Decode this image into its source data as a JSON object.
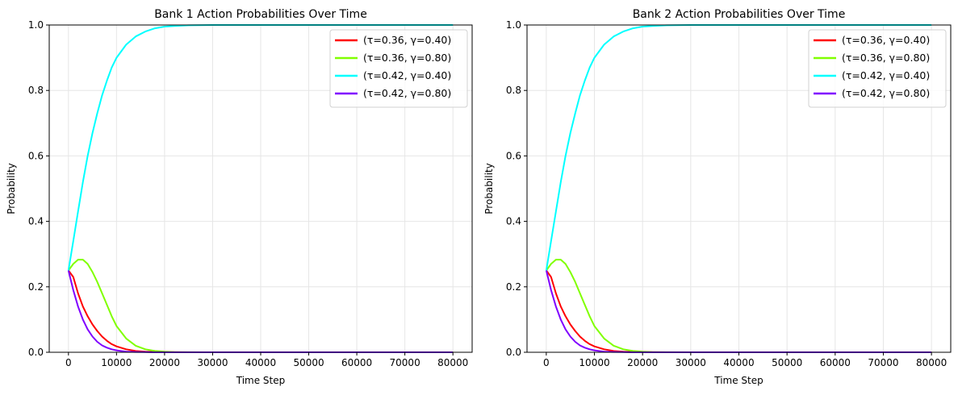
{
  "charts": [
    {
      "title": "Bank 1 Action Probabilities Over Time",
      "xlabel": "Time Step",
      "ylabel": "Probability"
    },
    {
      "title": "Bank 2 Action Probabilities Over Time",
      "xlabel": "Time Step",
      "ylabel": "Probability"
    }
  ],
  "chart_data": [
    {
      "type": "line",
      "title": "Bank 1 Action Probabilities Over Time",
      "xlabel": "Time Step",
      "ylabel": "Probability",
      "xlim": [
        -4000,
        84000
      ],
      "ylim": [
        0,
        1
      ],
      "xticks": [
        0,
        10000,
        20000,
        30000,
        40000,
        50000,
        60000,
        70000,
        80000
      ],
      "yticks": [
        0.0,
        0.2,
        0.4,
        0.6,
        0.8,
        1.0
      ],
      "grid": true,
      "legend_position": "top-right",
      "x": [
        0,
        1000,
        2000,
        3000,
        4000,
        5000,
        6000,
        7000,
        8000,
        9000,
        10000,
        12000,
        14000,
        16000,
        18000,
        20000,
        22000,
        25000,
        30000,
        40000,
        50000,
        60000,
        70000,
        80000
      ],
      "series": [
        {
          "name": "(τ=0.36, γ=0.40)",
          "color": "#ff0000",
          "values": [
            0.25,
            0.23,
            0.18,
            0.14,
            0.11,
            0.085,
            0.065,
            0.048,
            0.035,
            0.025,
            0.018,
            0.009,
            0.004,
            0.002,
            0.001,
            0.0005,
            0.0002,
            0,
            0,
            0,
            0,
            0,
            0,
            0
          ]
        },
        {
          "name": "(τ=0.36, γ=0.80)",
          "color": "#80ff00",
          "values": [
            0.25,
            0.27,
            0.283,
            0.283,
            0.27,
            0.245,
            0.215,
            0.18,
            0.145,
            0.11,
            0.08,
            0.042,
            0.02,
            0.009,
            0.004,
            0.002,
            0.0008,
            0.0002,
            0,
            0,
            0,
            0,
            0,
            0
          ]
        },
        {
          "name": "(τ=0.42, γ=0.40)",
          "color": "#00ffff",
          "values": [
            0.25,
            0.34,
            0.43,
            0.52,
            0.6,
            0.67,
            0.73,
            0.785,
            0.83,
            0.87,
            0.9,
            0.94,
            0.965,
            0.98,
            0.99,
            0.995,
            0.997,
            0.999,
            1.0,
            1.0,
            1.0,
            1.0,
            1.0,
            1.0
          ]
        },
        {
          "name": "(τ=0.42, γ=0.80)",
          "color": "#8000ff",
          "values": [
            0.25,
            0.19,
            0.14,
            0.1,
            0.07,
            0.048,
            0.032,
            0.021,
            0.014,
            0.009,
            0.006,
            0.002,
            0.001,
            0.0004,
            0.0001,
            0,
            0,
            0,
            0,
            0,
            0,
            0,
            0,
            0
          ]
        }
      ]
    },
    {
      "type": "line",
      "title": "Bank 2 Action Probabilities Over Time",
      "xlabel": "Time Step",
      "ylabel": "Probability",
      "xlim": [
        -4000,
        84000
      ],
      "ylim": [
        0,
        1
      ],
      "xticks": [
        0,
        10000,
        20000,
        30000,
        40000,
        50000,
        60000,
        70000,
        80000
      ],
      "yticks": [
        0.0,
        0.2,
        0.4,
        0.6,
        0.8,
        1.0
      ],
      "grid": true,
      "legend_position": "top-right",
      "x": [
        0,
        1000,
        2000,
        3000,
        4000,
        5000,
        6000,
        7000,
        8000,
        9000,
        10000,
        12000,
        14000,
        16000,
        18000,
        20000,
        22000,
        25000,
        30000,
        40000,
        50000,
        60000,
        70000,
        80000
      ],
      "series": [
        {
          "name": "(τ=0.36, γ=0.40)",
          "color": "#ff0000",
          "values": [
            0.25,
            0.23,
            0.18,
            0.14,
            0.11,
            0.085,
            0.065,
            0.048,
            0.035,
            0.025,
            0.018,
            0.009,
            0.004,
            0.002,
            0.001,
            0.0005,
            0.0002,
            0,
            0,
            0,
            0,
            0,
            0,
            0
          ]
        },
        {
          "name": "(τ=0.36, γ=0.80)",
          "color": "#80ff00",
          "values": [
            0.25,
            0.27,
            0.283,
            0.283,
            0.27,
            0.245,
            0.215,
            0.18,
            0.145,
            0.11,
            0.08,
            0.042,
            0.02,
            0.009,
            0.004,
            0.002,
            0.0008,
            0.0002,
            0,
            0,
            0,
            0,
            0,
            0
          ]
        },
        {
          "name": "(τ=0.42, γ=0.40)",
          "color": "#00ffff",
          "values": [
            0.25,
            0.34,
            0.43,
            0.52,
            0.6,
            0.67,
            0.73,
            0.785,
            0.83,
            0.87,
            0.9,
            0.94,
            0.965,
            0.98,
            0.99,
            0.995,
            0.997,
            0.999,
            1.0,
            1.0,
            1.0,
            1.0,
            1.0,
            1.0
          ]
        },
        {
          "name": "(τ=0.42, γ=0.80)",
          "color": "#8000ff",
          "values": [
            0.25,
            0.19,
            0.14,
            0.1,
            0.07,
            0.048,
            0.032,
            0.021,
            0.014,
            0.009,
            0.006,
            0.002,
            0.001,
            0.0004,
            0.0001,
            0,
            0,
            0,
            0,
            0,
            0,
            0,
            0,
            0
          ]
        }
      ]
    }
  ]
}
